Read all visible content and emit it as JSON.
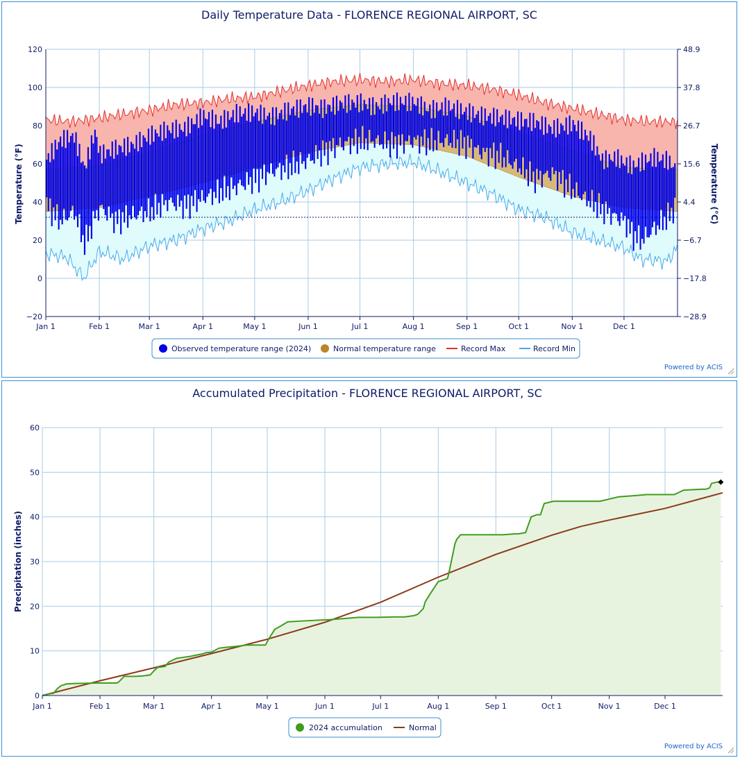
{
  "charts": [
    {
      "title": "Daily Temperature Data - FLORENCE REGIONAL AIRPORT, SC",
      "ylabel_left": "Temperature (°F)",
      "ylabel_right": "Temperature (°C)",
      "y_ticks": [
        "120",
        "100",
        "80",
        "60",
        "40",
        "20",
        "0",
        "−20"
      ],
      "y_ticks_right": [
        "48.9",
        "37.8",
        "26.7",
        "15.6",
        "4.4",
        "−6.7",
        "−17.8",
        "−28.9"
      ],
      "x_ticks": [
        "Jan 1",
        "Feb 1",
        "Mar 1",
        "Apr 1",
        "May 1",
        "Jun 1",
        "Jul 1",
        "Aug 1",
        "Sep 1",
        "Oct 1",
        "Nov 1",
        "Dec 1"
      ],
      "legend": [
        "Observed temperature range (2024)",
        "Normal temperature range",
        "Record Max",
        "Record Min"
      ],
      "credit": "Powered by ACIS"
    },
    {
      "title": "Accumulated Precipitation - FLORENCE REGIONAL AIRPORT, SC",
      "ylabel": "Precipitation (inches)",
      "y_ticks": [
        "60",
        "50",
        "40",
        "30",
        "20",
        "10",
        "0"
      ],
      "x_ticks": [
        "Jan 1",
        "Feb 1",
        "Mar 1",
        "Apr 1",
        "May 1",
        "Jun 1",
        "Jul 1",
        "Aug 1",
        "Sep 1",
        "Oct 1",
        "Nov 1",
        "Dec 1"
      ],
      "legend": [
        "2024 accumulation",
        "Normal"
      ],
      "credit": "Powered by ACIS"
    }
  ],
  "chart_data": [
    {
      "type": "area",
      "title": "Daily Temperature Data - FLORENCE REGIONAL AIRPORT, SC",
      "ylim": [
        -20,
        120
      ],
      "ylim_c": [
        -28.9,
        48.9
      ],
      "xrange_days": [
        0,
        366
      ],
      "freezing_line": 32,
      "colors": {
        "observed": "#0000e6",
        "normal": "#b8862b",
        "record_max": "#e62e2e",
        "record_min": "#44aaee",
        "axis": "#0d1a66",
        "grid": "#a9cbe3"
      },
      "x_day_ticks": [
        0,
        31,
        60,
        91,
        121,
        152,
        182,
        213,
        244,
        274,
        305,
        335
      ],
      "normal": {
        "days": [
          0,
          31,
          60,
          91,
          121,
          152,
          182,
          213,
          244,
          274,
          305,
          335,
          366
        ],
        "high": [
          57,
          59,
          66,
          75,
          82,
          88,
          91,
          90,
          85,
          76,
          67,
          58,
          57
        ],
        "low": [
          35,
          37,
          43,
          50,
          58,
          66,
          71,
          70,
          64,
          53,
          43,
          37,
          35
        ]
      },
      "record_max": {
        "days": [
          0,
          15,
          31,
          45,
          60,
          75,
          91,
          106,
          121,
          136,
          152,
          166,
          182,
          197,
          213,
          228,
          244,
          259,
          274,
          289,
          305,
          320,
          335,
          350,
          366
        ],
        "values": [
          83,
          82,
          84,
          86,
          88,
          91,
          92,
          94,
          95,
          98,
          101,
          103,
          104,
          103,
          104,
          102,
          101,
          99,
          96,
          92,
          89,
          86,
          83,
          82,
          82
        ]
      },
      "record_min": {
        "days": [
          0,
          12,
          22,
          31,
          45,
          60,
          75,
          91,
          106,
          121,
          136,
          152,
          166,
          182,
          197,
          213,
          228,
          244,
          259,
          274,
          289,
          305,
          320,
          335,
          345,
          360,
          366
        ],
        "values": [
          13,
          11,
          0,
          14,
          10,
          17,
          20,
          26,
          30,
          36,
          40,
          46,
          52,
          58,
          60,
          61,
          56,
          50,
          44,
          36,
          32,
          24,
          20,
          16,
          10,
          9,
          16
        ]
      },
      "observed_2024": {
        "days": [
          0,
          8,
          16,
          22,
          28,
          31,
          40,
          50,
          60,
          70,
          80,
          91,
          100,
          110,
          121,
          130,
          140,
          152,
          160,
          170,
          182,
          190,
          200,
          213,
          222,
          232,
          244,
          252,
          262,
          274,
          283,
          293,
          305,
          315,
          322,
          330,
          335,
          340,
          345,
          352,
          360,
          365
        ],
        "high": [
          60,
          70,
          72,
          55,
          74,
          62,
          65,
          67,
          72,
          75,
          76,
          83,
          80,
          85,
          86,
          84,
          88,
          91,
          90,
          93,
          94,
          92,
          95,
          95,
          91,
          93,
          90,
          88,
          87,
          85,
          84,
          80,
          82,
          74,
          62,
          63,
          60,
          58,
          60,
          62,
          60,
          55
        ],
        "low": [
          38,
          30,
          35,
          18,
          32,
          37,
          30,
          33,
          35,
          40,
          38,
          42,
          45,
          48,
          52,
          56,
          58,
          62,
          66,
          70,
          72,
          72,
          70,
          72,
          71,
          72,
          70,
          66,
          64,
          58,
          52,
          55,
          46,
          40,
          36,
          32,
          30,
          22,
          20,
          26,
          32,
          38
        ]
      }
    },
    {
      "type": "line",
      "title": "Accumulated Precipitation - FLORENCE REGIONAL AIRPORT, SC",
      "ylabel": "Precipitation (inches)",
      "ylim": [
        0,
        60
      ],
      "xrange_days": [
        0,
        366
      ],
      "colors": {
        "accumulation": "#3f9c1e",
        "normal": "#8b3a1a",
        "fill": "#e7f3df",
        "axis": "#0d1a66",
        "grid": "#a9cbe3"
      },
      "x_day_ticks": [
        0,
        31,
        60,
        91,
        121,
        152,
        182,
        213,
        244,
        274,
        305,
        335
      ],
      "series": [
        {
          "name": "2024 accumulation",
          "days": [
            0,
            4,
            6,
            8,
            10,
            13,
            18,
            30,
            40,
            41,
            44,
            50,
            54,
            58,
            60,
            62,
            66,
            68,
            72,
            75,
            80,
            82,
            86,
            88,
            91,
            95,
            99,
            104,
            110,
            120,
            122,
            125,
            128,
            132,
            140,
            155,
            170,
            180,
            190,
            195,
            200,
            202,
            205,
            206,
            209,
            213,
            215,
            218,
            219,
            221,
            222,
            223,
            225,
            230,
            240,
            248,
            254,
            256,
            260,
            263,
            266,
            268,
            270,
            275,
            290,
            300,
            310,
            320,
            325,
            340,
            345,
            355,
            357,
            359,
            360,
            363,
            365
          ],
          "values": [
            0,
            0.4,
            0.5,
            1.5,
            2.2,
            2.6,
            2.7,
            2.8,
            2.8,
            3.0,
            4.3,
            4.3,
            4.4,
            4.6,
            5.5,
            6.3,
            6.5,
            7.5,
            8.3,
            8.5,
            8.8,
            9.0,
            9.3,
            9.6,
            9.7,
            10.6,
            10.8,
            11.0,
            11.3,
            11.3,
            12.8,
            14.8,
            15.5,
            16.5,
            16.7,
            17.0,
            17.5,
            17.5,
            17.6,
            17.6,
            17.9,
            18.2,
            19.5,
            21.0,
            23.0,
            25.5,
            25.8,
            26.2,
            28.0,
            32.0,
            34.0,
            35.0,
            36.0,
            36.0,
            36.0,
            36.0,
            36.2,
            36.2,
            36.5,
            40.0,
            40.5,
            40.5,
            43.0,
            43.5,
            43.5,
            43.5,
            44.5,
            44.8,
            45.0,
            45.0,
            46.0,
            46.2,
            46.2,
            46.5,
            47.5,
            47.8,
            47.8
          ],
          "final_marker": {
            "day": 365,
            "value": 47.8
          }
        },
        {
          "name": "Normal",
          "days": [
            0,
            31,
            60,
            91,
            121,
            152,
            182,
            213,
            244,
            274,
            290,
            305,
            335,
            366
          ],
          "values": [
            0,
            3.3,
            6.2,
            9.4,
            12.6,
            16.4,
            20.9,
            26.5,
            31.6,
            35.9,
            37.9,
            39.3,
            41.9,
            45.4
          ]
        }
      ]
    }
  ]
}
